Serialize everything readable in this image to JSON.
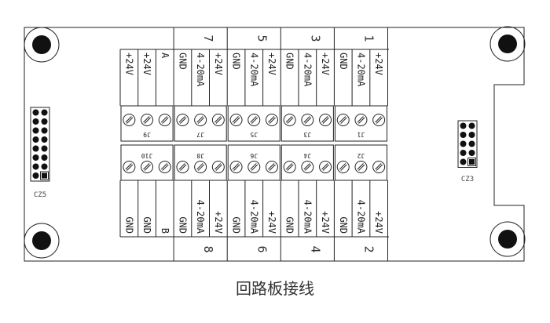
{
  "caption": "回路板接线",
  "connectors": {
    "left": "CZ5",
    "right": "CZ3"
  },
  "groups": [
    {
      "top_number": "",
      "bottom_number": "",
      "top_labels": [
        "+24V",
        "+24V",
        "A"
      ],
      "bottom_labels": [
        "GND",
        "GND",
        "B"
      ],
      "top_block": "J9",
      "bottom_block": "J10"
    },
    {
      "top_number": "7",
      "bottom_number": "8",
      "top_labels": [
        "GND",
        "4-20mA",
        "+24V"
      ],
      "bottom_labels": [
        "GND",
        "4-20mA",
        "+24V"
      ],
      "top_block": "J7",
      "bottom_block": "J8"
    },
    {
      "top_number": "5",
      "bottom_number": "6",
      "top_labels": [
        "GND",
        "4-20mA",
        "+24V"
      ],
      "bottom_labels": [
        "GND",
        "4-20mA",
        "+24V"
      ],
      "top_block": "J5",
      "bottom_block": "J6"
    },
    {
      "top_number": "3",
      "bottom_number": "4",
      "top_labels": [
        "GND",
        "4-20mA",
        "+24V"
      ],
      "bottom_labels": [
        "GND",
        "4-20mA",
        "+24V"
      ],
      "top_block": "J3",
      "bottom_block": "J4"
    },
    {
      "top_number": "1",
      "bottom_number": "2",
      "top_labels": [
        "GND",
        "4-20mA",
        "+24V"
      ],
      "bottom_labels": [
        "GND",
        "4-20mA",
        "+24V"
      ],
      "top_block": "J1",
      "bottom_block": "J2"
    }
  ]
}
